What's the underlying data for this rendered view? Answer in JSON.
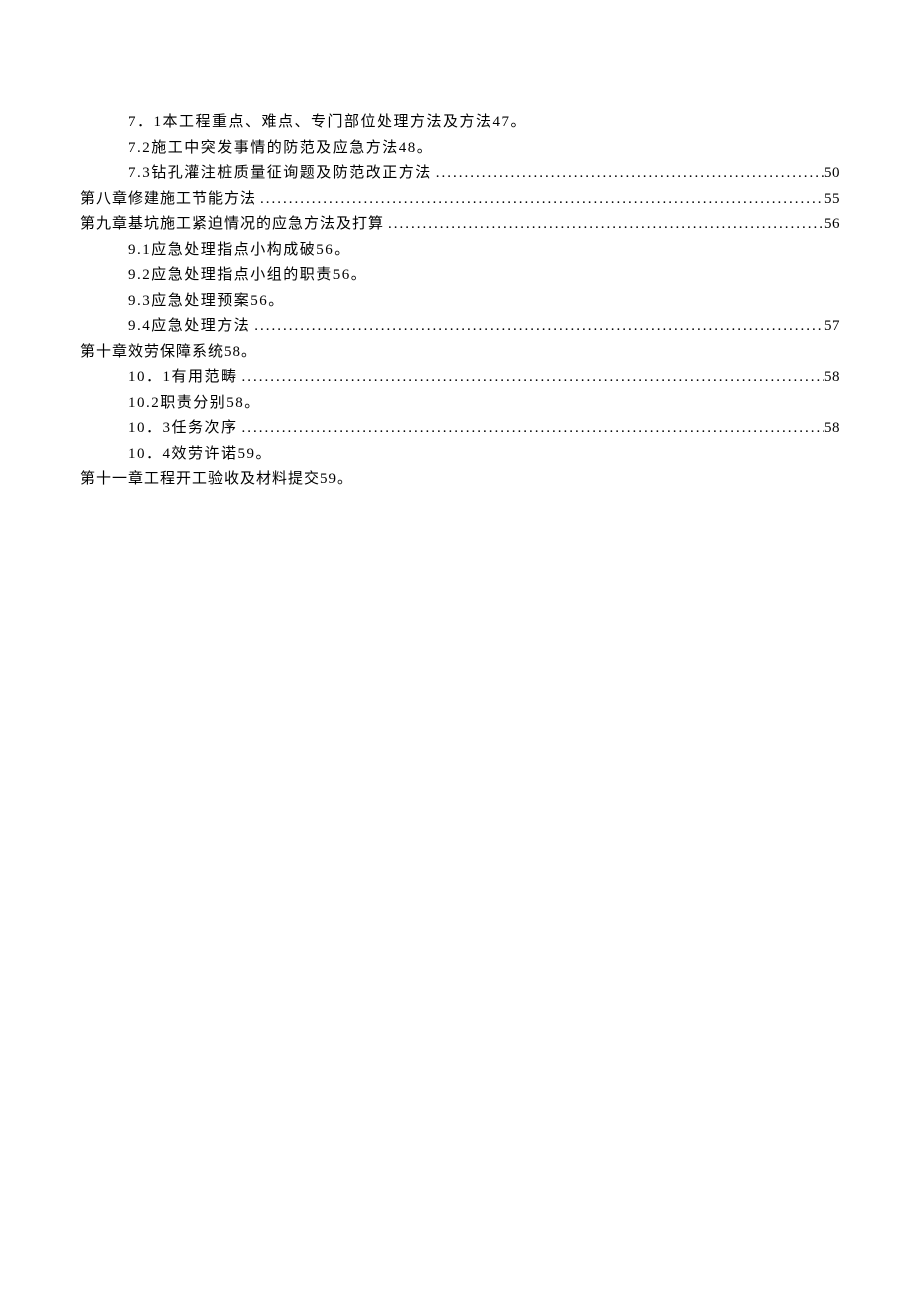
{
  "toc": {
    "entries": [
      {
        "level": 1,
        "title": "7．1本工程重点、难点、专门部位处理方法及方法47",
        "spaced": true,
        "dots": false,
        "page": "",
        "suffix": "。"
      },
      {
        "level": 1,
        "title": "7.2施工中突发事情的防范及应急方法48",
        "spaced": true,
        "dots": false,
        "page": "",
        "suffix": "。"
      },
      {
        "level": 1,
        "title": "7.3钻孔灌注桩质量征询题及防范改正方法",
        "spaced": true,
        "dots": true,
        "page": "50",
        "suffix": ""
      },
      {
        "level": 0,
        "title": "第八章修建施工节能方法",
        "spaced": false,
        "dots": true,
        "page": "55",
        "suffix": ""
      },
      {
        "level": 0,
        "title": "第九章基坑施工紧迫情况的应急方法及打算",
        "spaced": false,
        "dots": true,
        "page": "56",
        "suffix": ""
      },
      {
        "level": 1,
        "title": "9.1应急处理指点小构成破56",
        "spaced": true,
        "dots": false,
        "page": "",
        "suffix": "。"
      },
      {
        "level": 1,
        "title": "9.2应急处理指点小组的职责56",
        "spaced": true,
        "dots": false,
        "page": "",
        "suffix": "。"
      },
      {
        "level": 1,
        "title": "9.3应急处理预案56",
        "spaced": true,
        "dots": false,
        "page": "",
        "suffix": "。"
      },
      {
        "level": 1,
        "title": "9.4应急处理方法",
        "spaced": true,
        "dots": true,
        "page": "57",
        "suffix": ""
      },
      {
        "level": 0,
        "title": "第十章效劳保障系统58",
        "spaced": false,
        "dots": false,
        "page": "",
        "suffix": "。"
      },
      {
        "level": 1,
        "title": "10．1有用范畴",
        "spaced": true,
        "dots": true,
        "page": "58",
        "suffix": ""
      },
      {
        "level": 1,
        "title": "10.2职责分别58",
        "spaced": true,
        "dots": false,
        "page": "",
        "suffix": "。"
      },
      {
        "level": 1,
        "title": "10．3任务次序",
        "spaced": true,
        "dots": true,
        "page": "58",
        "suffix": ""
      },
      {
        "level": 1,
        "title": "10．4效劳许诺59",
        "spaced": true,
        "dots": false,
        "page": "",
        "suffix": "。"
      },
      {
        "level": 0,
        "title": "第十一章工程开工验收及材料提交59",
        "spaced": false,
        "dots": false,
        "page": "",
        "suffix": "。"
      }
    ]
  }
}
